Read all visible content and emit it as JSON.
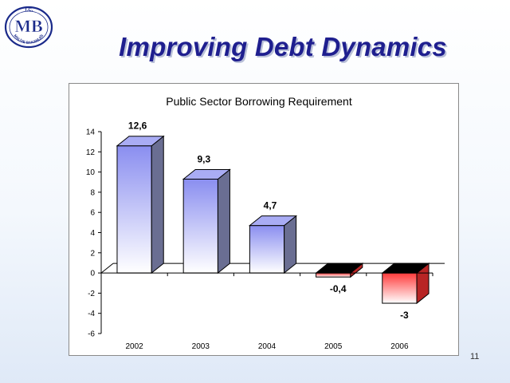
{
  "logo": {
    "top_text": "T.C.",
    "monogram": "MB",
    "ring_text": "MALİYE BAKANLIĞI"
  },
  "slide": {
    "title": "Improving Debt Dynamics",
    "page_number": "11"
  },
  "colors": {
    "positive_bar_top": "#8a8ef0",
    "positive_bar_bottom": "#ffffff",
    "negative_bar_top": "#ff3a3a",
    "negative_bar_bottom": "#ffffff",
    "title_color": "#1f1f8f"
  },
  "chart_data": {
    "type": "bar",
    "title": "Public Sector Borrowing Requirement",
    "categories": [
      "2002",
      "2003",
      "2004",
      "2005",
      "2006"
    ],
    "values": [
      12.6,
      9.3,
      4.7,
      -0.4,
      -3
    ],
    "data_labels": [
      "12,6",
      "9,3",
      "4,7",
      "-0,4",
      "-3"
    ],
    "ylim": [
      -6,
      14
    ],
    "yticks": [
      -6,
      -4,
      -2,
      0,
      2,
      4,
      6,
      8,
      10,
      12,
      14
    ],
    "grid": false,
    "legend": "none",
    "style": "3d-column"
  }
}
